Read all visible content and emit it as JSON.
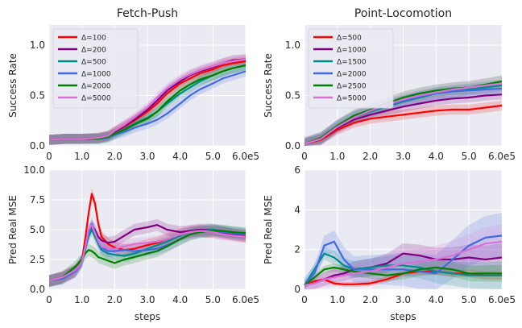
{
  "figure": {
    "steps_label": "steps",
    "x_max_label": "6.0e5"
  },
  "chart_data": [
    {
      "id": "fp_success",
      "type": "line",
      "title": "Fetch-Push",
      "xlabel": "",
      "ylabel": "Success Rate",
      "xlim": [
        0,
        6.0
      ],
      "ylim": [
        0,
        1.2
      ],
      "xticks": [
        "0",
        "1.0",
        "2.0",
        "3.0",
        "4.0",
        "5.0",
        "6.0e5"
      ],
      "yticks": [
        "0.0",
        "0.5",
        "1.0"
      ],
      "ytick_values": [
        0,
        0.5,
        1.0
      ],
      "legend": "top-left",
      "x": [
        0,
        0.5,
        1.0,
        1.5,
        1.8,
        2.0,
        2.3,
        2.6,
        3.0,
        3.3,
        3.6,
        4.0,
        4.3,
        4.6,
        5.0,
        5.3,
        5.6,
        6.0
      ],
      "series": [
        {
          "name": "Δ=100",
          "color": "#ff0000",
          "values": [
            0.06,
            0.07,
            0.07,
            0.08,
            0.1,
            0.14,
            0.19,
            0.25,
            0.34,
            0.42,
            0.52,
            0.62,
            0.67,
            0.72,
            0.76,
            0.8,
            0.82,
            0.84
          ]
        },
        {
          "name": "Δ=200",
          "color": "#800080",
          "values": [
            0.06,
            0.07,
            0.07,
            0.08,
            0.1,
            0.14,
            0.2,
            0.26,
            0.36,
            0.45,
            0.55,
            0.64,
            0.7,
            0.74,
            0.78,
            0.82,
            0.85,
            0.86
          ]
        },
        {
          "name": "Δ=500",
          "color": "#008b8b",
          "values": [
            0.06,
            0.07,
            0.07,
            0.07,
            0.09,
            0.12,
            0.17,
            0.22,
            0.28,
            0.34,
            0.42,
            0.52,
            0.58,
            0.64,
            0.7,
            0.74,
            0.77,
            0.8
          ]
        },
        {
          "name": "Δ=1000",
          "color": "#4169e1",
          "values": [
            0.06,
            0.07,
            0.07,
            0.07,
            0.08,
            0.11,
            0.14,
            0.18,
            0.22,
            0.26,
            0.32,
            0.42,
            0.5,
            0.56,
            0.62,
            0.67,
            0.7,
            0.74
          ]
        },
        {
          "name": "Δ=2000",
          "color": "#008000",
          "values": [
            0.06,
            0.07,
            0.07,
            0.07,
            0.09,
            0.12,
            0.16,
            0.21,
            0.27,
            0.34,
            0.44,
            0.55,
            0.61,
            0.66,
            0.7,
            0.74,
            0.77,
            0.8
          ]
        },
        {
          "name": "Δ=5000",
          "color": "#da70d6",
          "values": [
            0.06,
            0.07,
            0.07,
            0.08,
            0.1,
            0.15,
            0.21,
            0.28,
            0.38,
            0.48,
            0.57,
            0.66,
            0.71,
            0.75,
            0.79,
            0.82,
            0.84,
            0.86
          ]
        }
      ]
    },
    {
      "id": "pl_success",
      "type": "line",
      "title": "Point-Locomotion",
      "xlabel": "",
      "ylabel": "Success Rate",
      "xlim": [
        0,
        6.0
      ],
      "ylim": [
        0,
        1.2
      ],
      "xticks": [
        "0",
        "1.0",
        "2.0",
        "3.0",
        "4.0",
        "5.0",
        "6.0e5"
      ],
      "yticks": [
        "0.0",
        "0.5",
        "1.0"
      ],
      "ytick_values": [
        0,
        0.5,
        1.0
      ],
      "legend": "top-left",
      "x": [
        0,
        0.5,
        1.0,
        1.5,
        2.0,
        2.5,
        3.0,
        3.5,
        4.0,
        4.5,
        5.0,
        5.5,
        6.0
      ],
      "series": [
        {
          "name": "Δ=500",
          "color": "#ff0000",
          "values": [
            0.02,
            0.06,
            0.16,
            0.23,
            0.27,
            0.29,
            0.31,
            0.33,
            0.35,
            0.36,
            0.36,
            0.38,
            0.4
          ]
        },
        {
          "name": "Δ=1000",
          "color": "#800080",
          "values": [
            0.02,
            0.07,
            0.18,
            0.26,
            0.31,
            0.35,
            0.39,
            0.42,
            0.45,
            0.47,
            0.48,
            0.5,
            0.51
          ]
        },
        {
          "name": "Δ=1500",
          "color": "#008b8b",
          "values": [
            0.02,
            0.07,
            0.19,
            0.28,
            0.34,
            0.39,
            0.44,
            0.48,
            0.52,
            0.54,
            0.56,
            0.58,
            0.6
          ]
        },
        {
          "name": "Δ=2000",
          "color": "#4169e1",
          "values": [
            0.02,
            0.07,
            0.2,
            0.29,
            0.35,
            0.4,
            0.45,
            0.49,
            0.52,
            0.54,
            0.55,
            0.56,
            0.57
          ]
        },
        {
          "name": "Δ=2500",
          "color": "#008000",
          "values": [
            0.02,
            0.08,
            0.2,
            0.3,
            0.36,
            0.42,
            0.48,
            0.52,
            0.55,
            0.57,
            0.58,
            0.61,
            0.64
          ]
        },
        {
          "name": "Δ=5000",
          "color": "#da70d6",
          "values": [
            0.02,
            0.07,
            0.19,
            0.28,
            0.35,
            0.41,
            0.46,
            0.5,
            0.53,
            0.56,
            0.58,
            0.6,
            0.62
          ]
        }
      ]
    },
    {
      "id": "fp_mse",
      "type": "line",
      "title": "",
      "xlabel": "steps",
      "ylabel": "Pred Real MSE",
      "xlim": [
        0,
        6.0
      ],
      "ylim": [
        0,
        10.0
      ],
      "xticks": [
        "0",
        "1.0",
        "2.0",
        "3.0",
        "4.0",
        "5.0",
        "6.0e5"
      ],
      "yticks": [
        "0.0",
        "2.5",
        "5.0",
        "7.5",
        "10.0"
      ],
      "ytick_values": [
        0,
        2.5,
        5.0,
        7.5,
        10.0
      ],
      "legend": "none",
      "x": [
        0,
        0.4,
        0.8,
        1.0,
        1.1,
        1.2,
        1.3,
        1.4,
        1.5,
        1.6,
        1.8,
        2.0,
        2.3,
        2.6,
        3.0,
        3.3,
        3.6,
        4.0,
        4.3,
        4.6,
        5.0,
        5.3,
        5.6,
        6.0
      ],
      "series": [
        {
          "name": "Δ=100",
          "color": "#ff0000",
          "values": [
            0.7,
            1.0,
            1.5,
            2.4,
            4.2,
            6.3,
            8.0,
            7.2,
            5.5,
            4.4,
            3.8,
            3.5,
            3.3,
            3.4,
            3.7,
            3.9,
            4.2,
            4.6,
            4.8,
            4.9,
            4.8,
            4.7,
            4.6,
            4.5
          ]
        },
        {
          "name": "Δ=200",
          "color": "#800080",
          "values": [
            0.7,
            1.0,
            1.6,
            2.4,
            3.6,
            4.8,
            5.3,
            5.0,
            4.4,
            4.1,
            3.9,
            4.0,
            4.5,
            5.0,
            5.2,
            5.4,
            5.0,
            4.8,
            4.9,
            5.0,
            5.0,
            4.8,
            4.6,
            4.4
          ]
        },
        {
          "name": "Δ=500",
          "color": "#008b8b",
          "values": [
            0.7,
            0.9,
            1.5,
            2.3,
            3.3,
            4.4,
            5.0,
            4.4,
            3.8,
            3.3,
            3.0,
            2.9,
            2.8,
            3.0,
            3.4,
            3.7,
            4.0,
            4.5,
            4.8,
            4.9,
            5.0,
            4.9,
            4.8,
            4.6
          ]
        },
        {
          "name": "Δ=1000",
          "color": "#4169e1",
          "values": [
            0.7,
            0.9,
            1.5,
            2.3,
            3.4,
            4.6,
            5.5,
            4.8,
            4.0,
            3.5,
            3.2,
            3.2,
            3.3,
            3.2,
            3.3,
            3.4,
            3.7,
            4.2,
            4.6,
            4.8,
            4.9,
            4.8,
            4.7,
            4.6
          ]
        },
        {
          "name": "Δ=2000",
          "color": "#008000",
          "values": [
            0.7,
            1.0,
            1.9,
            2.5,
            3.0,
            3.3,
            3.2,
            3.0,
            2.7,
            2.6,
            2.4,
            2.2,
            2.5,
            2.7,
            3.0,
            3.2,
            3.6,
            4.2,
            4.6,
            4.8,
            4.9,
            4.9,
            4.8,
            4.7
          ]
        },
        {
          "name": "Δ=5000",
          "color": "#da70d6",
          "values": [
            0.7,
            1.0,
            1.6,
            2.3,
            3.5,
            5.0,
            5.4,
            4.7,
            4.0,
            3.6,
            3.4,
            3.4,
            3.6,
            3.8,
            3.9,
            4.0,
            4.2,
            4.6,
            4.8,
            4.9,
            4.8,
            4.6,
            4.5,
            4.4
          ]
        }
      ]
    },
    {
      "id": "pl_mse",
      "type": "line",
      "title": "",
      "xlabel": "steps",
      "ylabel": "Pred Real MSE",
      "xlim": [
        0,
        6.0
      ],
      "ylim": [
        0,
        6
      ],
      "xticks": [
        "0",
        "1.0",
        "2.0",
        "3.0",
        "4.0",
        "5.0",
        "6.0e5"
      ],
      "yticks": [
        "0",
        "2",
        "4",
        "6"
      ],
      "ytick_values": [
        0,
        2,
        4,
        6
      ],
      "legend": "none",
      "x": [
        0,
        0.3,
        0.6,
        0.9,
        1.2,
        1.5,
        2.0,
        2.5,
        3.0,
        3.5,
        4.0,
        4.5,
        5.0,
        5.5,
        6.0
      ],
      "series": [
        {
          "name": "Δ=500",
          "color": "#ff0000",
          "values": [
            0.2,
            0.4,
            0.5,
            0.3,
            0.25,
            0.25,
            0.3,
            0.5,
            0.8,
            0.9,
            0.9,
            0.8,
            0.8,
            0.7,
            0.7
          ]
        },
        {
          "name": "Δ=1000",
          "color": "#800080",
          "values": [
            0.2,
            0.3,
            0.5,
            0.7,
            0.8,
            1.0,
            1.1,
            1.3,
            1.8,
            1.7,
            1.5,
            1.5,
            1.6,
            1.5,
            1.6
          ]
        },
        {
          "name": "Δ=1500",
          "color": "#008b8b",
          "values": [
            0.2,
            1.0,
            1.8,
            1.6,
            1.2,
            1.0,
            1.1,
            1.2,
            1.2,
            1.1,
            0.9,
            0.8,
            0.7,
            0.7,
            0.7
          ]
        },
        {
          "name": "Δ=2000",
          "color": "#4169e1",
          "values": [
            0.2,
            0.8,
            2.2,
            2.4,
            1.5,
            1.0,
            1.0,
            1.0,
            1.0,
            0.9,
            0.8,
            1.5,
            2.2,
            2.6,
            2.7
          ]
        },
        {
          "name": "Δ=2500",
          "color": "#008000",
          "values": [
            0.2,
            0.6,
            1.0,
            1.1,
            1.0,
            0.9,
            0.8,
            0.7,
            0.8,
            1.0,
            1.1,
            1.0,
            0.8,
            0.8,
            0.8
          ]
        },
        {
          "name": "Δ=5000",
          "color": "#da70d6",
          "values": [
            0.2,
            0.3,
            0.5,
            0.6,
            0.7,
            0.8,
            0.9,
            1.1,
            1.3,
            1.4,
            1.5,
            1.7,
            2.0,
            2.3,
            2.4
          ]
        }
      ]
    }
  ]
}
